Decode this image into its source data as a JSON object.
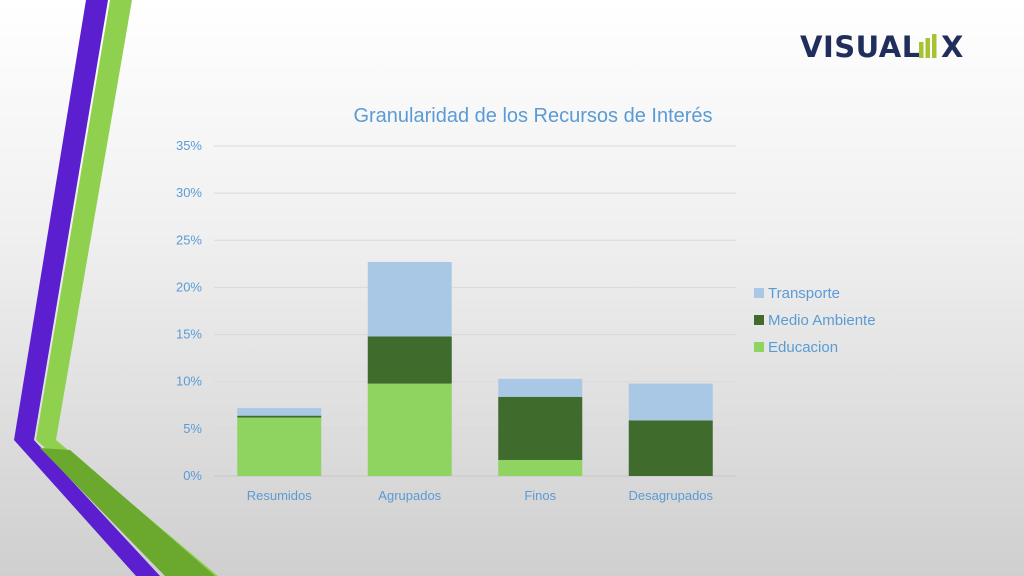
{
  "logo": {
    "text_left": "VISUAL",
    "text_right": "X",
    "bars_color": "#a6c336",
    "text_color": "#1f2e5b"
  },
  "colors": {
    "text": "#5b9bd5",
    "grid": "#d9d9d9",
    "deco_purple": "#5b1fcf",
    "deco_green": "#8fd14f",
    "deco_dark_green": "#6aa82e"
  },
  "chart_data": {
    "type": "bar",
    "stacked": true,
    "title": "Granularidad de los Recursos de Interés",
    "categories": [
      "Resumidos",
      "Agrupados",
      "Finos",
      "Desagrupados"
    ],
    "series": [
      {
        "name": "Educacion",
        "values": [
          6.2,
          9.8,
          1.7,
          0.0
        ],
        "color": "#8fd460"
      },
      {
        "name": "Medio Ambiente",
        "values": [
          0.2,
          5.0,
          6.7,
          5.9
        ],
        "color": "#3f6b2d"
      },
      {
        "name": "Transporte",
        "values": [
          0.8,
          7.9,
          1.9,
          3.9
        ],
        "color": "#a9c8e6"
      }
    ],
    "ylim": [
      0,
      35
    ],
    "yticks": [
      "0%",
      "5%",
      "10%",
      "15%",
      "20%",
      "25%",
      "30%",
      "35%"
    ],
    "ytick_values": [
      0,
      5,
      10,
      15,
      20,
      25,
      30,
      35
    ],
    "legend_order": [
      "Transporte",
      "Medio Ambiente",
      "Educacion"
    ],
    "legend_position": "right",
    "grid": true
  }
}
